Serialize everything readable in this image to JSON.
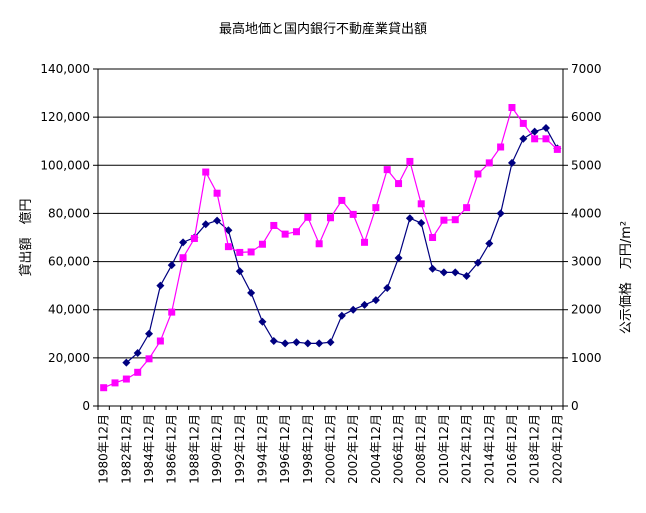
{
  "chart_data": {
    "type": "line",
    "title": "最高地価と国内銀行不動産業貸出額",
    "ylabel_left": "貸出額　億円",
    "ylabel_right": "公示価格　万円/m²",
    "ylim_left": [
      0,
      140000
    ],
    "ylim_right": [
      0,
      7000
    ],
    "yticks_left": [
      "0",
      "20,000",
      "40,000",
      "60,000",
      "80,000",
      "100,000",
      "120,000",
      "140,000"
    ],
    "yticks_right": [
      "0",
      "1000",
      "2000",
      "3000",
      "4000",
      "5000",
      "6000",
      "7000"
    ],
    "categories": [
      "1980年12月",
      "1981年12月",
      "1982年12月",
      "1983年12月",
      "1984年12月",
      "1985年12月",
      "1986年12月",
      "1987年12月",
      "1988年12月",
      "1989年12月",
      "1990年12月",
      "1991年12月",
      "1992年12月",
      "1993年12月",
      "1994年12月",
      "1995年12月",
      "1996年12月",
      "1997年12月",
      "1998年12月",
      "1999年12月",
      "2000年12月",
      "2001年12月",
      "2002年12月",
      "2003年12月",
      "2004年12月",
      "2005年12月",
      "2006年12月",
      "2007年12月",
      "2008年12月",
      "2009年12月",
      "2010年12月",
      "2011年12月",
      "2012年12月",
      "2013年12月",
      "2014年12月",
      "2015年12月",
      "2016年12月",
      "2017年12月",
      "2018年12月",
      "2019年12月",
      "2020年12月"
    ],
    "xtick_labels": [
      "1980年12月",
      "1982年12月",
      "1984年12月",
      "1986年12月",
      "1988年12月",
      "1990年12月",
      "1992年12月",
      "1994年12月",
      "1996年12月",
      "1998年12月",
      "2000年12月",
      "2002年12月",
      "2004年12月",
      "2006年12月",
      "2008年12月",
      "2010年12月",
      "2012年12月",
      "2014年12月",
      "2016年12月",
      "2018年12月",
      "2020年12月"
    ],
    "series": [
      {
        "axis": "left",
        "color": "#000080",
        "marker": "diamond",
        "values": [
          null,
          null,
          18000,
          22000,
          30000,
          50000,
          58500,
          68000,
          70000,
          75500,
          77000,
          73000,
          56000,
          47000,
          35000,
          27000,
          26000,
          26500,
          26000,
          26000,
          26500,
          37500,
          40000,
          42000,
          44000,
          49000,
          61500,
          78000,
          76000,
          57000,
          55500,
          55500,
          54000,
          59500,
          67500,
          80000,
          101000,
          111000,
          114000,
          115500,
          107000
        ]
      },
      {
        "axis": "right",
        "color": "#ff00ff",
        "marker": "square",
        "values": [
          380,
          480,
          560,
          700,
          980,
          1350,
          1950,
          3080,
          3480,
          4860,
          4420,
          3310,
          3190,
          3200,
          3360,
          3750,
          3570,
          3620,
          3920,
          3370,
          3910,
          4270,
          3980,
          3400,
          4120,
          4910,
          4620,
          5080,
          4200,
          3500,
          3860,
          3870,
          4120,
          4820,
          5050,
          5380,
          6200,
          5870,
          5550,
          5550,
          5330
        ]
      }
    ],
    "grid": true
  }
}
